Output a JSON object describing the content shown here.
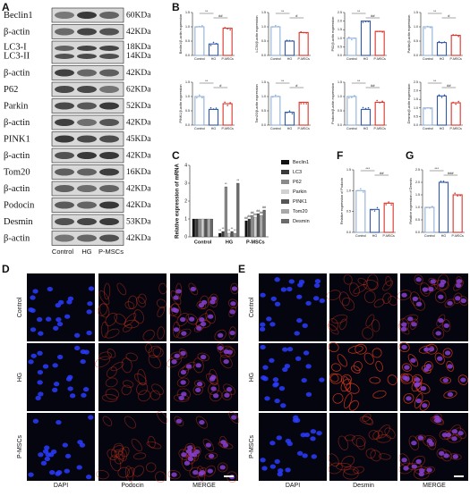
{
  "figure": {
    "panel_labels": [
      "A",
      "B",
      "C",
      "D",
      "E",
      "F",
      "G"
    ]
  },
  "blot": {
    "lanes": [
      "Control",
      "HG",
      "P-MSCs"
    ],
    "rows": [
      {
        "label": "Beclin1",
        "kda": "60KDa"
      },
      {
        "label": "β-actin",
        "kda": "42KDa"
      },
      {
        "label": [
          "LC3-I",
          "LC3-II"
        ],
        "kda": [
          "18KDa",
          "14KDa"
        ]
      },
      {
        "label": "β-actin",
        "kda": "42KDa"
      },
      {
        "label": "P62",
        "kda": "62KDa"
      },
      {
        "label": "Parkin",
        "kda": "52KDa"
      },
      {
        "label": "β-actin",
        "kda": "42KDa"
      },
      {
        "label": "PINK1",
        "kda": "45KDa"
      },
      {
        "label": "β-actin",
        "kda": "42KDa"
      },
      {
        "label": "Tom20",
        "kda": "16KDa"
      },
      {
        "label": "β-actin",
        "kda": "42KDa"
      },
      {
        "label": "Podocin",
        "kda": "42KDa"
      },
      {
        "label": "Desmin",
        "kda": "53KDa"
      },
      {
        "label": "β-actin",
        "kda": "42KDa"
      }
    ]
  },
  "chart_data": [
    {
      "type": "bar",
      "title": "Beclin1/β-actin expression",
      "categories": [
        "Control",
        "HG",
        "P-MSCs"
      ],
      "values": [
        1.0,
        0.4,
        0.95
      ],
      "colors": [
        "#8fb0d8",
        "#2f58a8",
        "#d9322b"
      ],
      "ylim": [
        0,
        1.5
      ],
      "yticks": [
        {
          "value": 0,
          "label": "0.0"
        },
        {
          "value": 0.5,
          "label": "0.5"
        },
        {
          "value": 1,
          "label": "1.0"
        },
        {
          "value": 1.5,
          "label": "1.5"
        }
      ],
      "annotations": [
        "**",
        "##"
      ]
    },
    {
      "type": "bar",
      "title": "LC3II/β-actin expression",
      "categories": [
        "Control",
        "HG",
        "P-MSCs"
      ],
      "values": [
        1.0,
        0.5,
        0.8
      ],
      "colors": [
        "#8fb0d8",
        "#2f58a8",
        "#d9322b"
      ],
      "ylim": [
        0,
        1.5
      ],
      "yticks": [
        {
          "value": 0,
          "label": "0.0"
        },
        {
          "value": 0.5,
          "label": "0.5"
        },
        {
          "value": 1,
          "label": "1.0"
        },
        {
          "value": 1.5,
          "label": "1.5"
        }
      ],
      "annotations": [
        "**",
        "#"
      ]
    },
    {
      "type": "bar",
      "title": "P62/β-actin expression",
      "categories": [
        "Control",
        "HG",
        "P-MSCs"
      ],
      "values": [
        1.0,
        2.0,
        1.4
      ],
      "colors": [
        "#8fb0d8",
        "#2f58a8",
        "#d9322b"
      ],
      "ylim": [
        0,
        2.5
      ],
      "yticks": [
        {
          "value": 0,
          "label": "0.0"
        },
        {
          "value": 0.5,
          "label": "0.5"
        },
        {
          "value": 1,
          "label": "1.0"
        },
        {
          "value": 1.5,
          "label": "1.5"
        },
        {
          "value": 2,
          "label": "2.0"
        },
        {
          "value": 2.5,
          "label": "2.5"
        }
      ],
      "annotations": [
        "**",
        "##"
      ]
    },
    {
      "type": "bar",
      "title": "Parkin/β-actin expression",
      "categories": [
        "Control",
        "HG",
        "P-MSCs"
      ],
      "values": [
        1.0,
        0.45,
        0.7
      ],
      "colors": [
        "#8fb0d8",
        "#2f58a8",
        "#d9322b"
      ],
      "ylim": [
        0,
        1.5
      ],
      "yticks": [
        {
          "value": 0,
          "label": "0.0"
        },
        {
          "value": 0.5,
          "label": "0.5"
        },
        {
          "value": 1,
          "label": "1.0"
        },
        {
          "value": 1.5,
          "label": "1.5"
        }
      ],
      "annotations": [
        "**",
        "#"
      ]
    },
    {
      "type": "bar",
      "title": "PINK1/β-actin expression",
      "categories": [
        "Control",
        "HG",
        "P-MSCs"
      ],
      "values": [
        1.0,
        0.55,
        0.75
      ],
      "colors": [
        "#8fb0d8",
        "#2f58a8",
        "#d9322b"
      ],
      "ylim": [
        0,
        1.5
      ],
      "yticks": [
        {
          "value": 0,
          "label": "0.0"
        },
        {
          "value": 0.5,
          "label": "0.5"
        },
        {
          "value": 1,
          "label": "1.0"
        },
        {
          "value": 1.5,
          "label": "1.5"
        }
      ],
      "annotations": [
        "**",
        "#"
      ]
    },
    {
      "type": "bar",
      "title": "Tom20/β-actin expression",
      "categories": [
        "Control",
        "HG",
        "P-MSCs"
      ],
      "values": [
        1.0,
        0.45,
        0.8
      ],
      "colors": [
        "#8fb0d8",
        "#2f58a8",
        "#d9322b"
      ],
      "ylim": [
        0,
        1.5
      ],
      "yticks": [
        {
          "value": 0,
          "label": "0.0"
        },
        {
          "value": 0.5,
          "label": "0.5"
        },
        {
          "value": 1,
          "label": "1.0"
        },
        {
          "value": 1.5,
          "label": "1.5"
        }
      ],
      "annotations": [
        "**",
        "#"
      ]
    },
    {
      "type": "bar",
      "title": "Podocin/β-actin expression",
      "categories": [
        "Control",
        "HG",
        "P-MSCs"
      ],
      "values": [
        1.0,
        0.55,
        0.8
      ],
      "colors": [
        "#8fb0d8",
        "#2f58a8",
        "#d9322b"
      ],
      "ylim": [
        0,
        1.5
      ],
      "yticks": [
        {
          "value": 0,
          "label": "0.0"
        },
        {
          "value": 0.5,
          "label": "0.5"
        },
        {
          "value": 1,
          "label": "1.0"
        },
        {
          "value": 1.5,
          "label": "1.5"
        }
      ],
      "annotations": [
        "**",
        "##"
      ]
    },
    {
      "type": "bar",
      "title": "Desmin/β-actin expression",
      "categories": [
        "Control",
        "HG",
        "P-MSCs"
      ],
      "values": [
        1.0,
        1.7,
        1.3
      ],
      "colors": [
        "#8fb0d8",
        "#2f58a8",
        "#d9322b"
      ],
      "ylim": [
        0,
        2.5
      ],
      "yticks": [
        {
          "value": 0,
          "label": "0.0"
        },
        {
          "value": 0.5,
          "label": "0.5"
        },
        {
          "value": 1,
          "label": "1.0"
        },
        {
          "value": 1.5,
          "label": "1.5"
        },
        {
          "value": 2,
          "label": "2.0"
        },
        {
          "value": 2.5,
          "label": "2.5"
        }
      ],
      "annotations": [
        "**",
        "##"
      ]
    },
    {
      "type": "grouped-bar",
      "y_label": "Relative expression of mRNA",
      "categories": [
        "Control",
        "HG",
        "P-MSCs"
      ],
      "ylim": [
        0,
        4
      ],
      "yticks": [
        0,
        1,
        2,
        3,
        4
      ],
      "annotations": [
        "**",
        "##"
      ],
      "series": [
        {
          "name": "Beclin1",
          "color": "#111111",
          "values": [
            1.0,
            0.2,
            0.9
          ]
        },
        {
          "name": "LC3",
          "color": "#3a3a3a",
          "values": [
            1.0,
            0.3,
            1.0
          ]
        },
        {
          "name": "P62",
          "color": "#8a8a8a",
          "values": [
            1.0,
            2.8,
            1.2
          ]
        },
        {
          "name": "Parkin",
          "color": "#d0d0d0",
          "values": [
            1.0,
            0.2,
            1.1
          ]
        },
        {
          "name": "PINK1",
          "color": "#555555",
          "values": [
            1.0,
            0.3,
            1.3
          ]
        },
        {
          "name": "Tom20",
          "color": "#a8a8a8",
          "values": [
            1.0,
            0.2,
            1.2
          ]
        },
        {
          "name": "Desmin",
          "color": "#6a6a6a",
          "values": [
            1.0,
            3.0,
            1.5
          ]
        }
      ]
    },
    {
      "type": "bar",
      "title": "Relative expression of Podocin",
      "categories": [
        "Control",
        "HG",
        "P-MSCs"
      ],
      "values": [
        1.0,
        0.55,
        0.7
      ],
      "colors": [
        "#8fb0d8",
        "#2f58a8",
        "#d9322b"
      ],
      "ylim": [
        0,
        1.5
      ],
      "yticks": [
        {
          "value": 0,
          "label": "0.0"
        },
        {
          "value": 0.5,
          "label": "0.5"
        },
        {
          "value": 1,
          "label": "1.0"
        },
        {
          "value": 1.5,
          "label": "1.5"
        }
      ],
      "annotations": [
        "***",
        "##"
      ]
    },
    {
      "type": "bar",
      "title": "Relative expression of Desmin",
      "categories": [
        "Control",
        "HG",
        "P-MSCs"
      ],
      "values": [
        1.0,
        2.0,
        1.5
      ],
      "colors": [
        "#8fb0d8",
        "#2f58a8",
        "#d9322b"
      ],
      "ylim": [
        0,
        2.5
      ],
      "yticks": [
        {
          "value": 0,
          "label": "0.0"
        },
        {
          "value": 0.5,
          "label": "0.5"
        },
        {
          "value": 1,
          "label": "1.0"
        },
        {
          "value": 1.5,
          "label": "1.5"
        },
        {
          "value": 2,
          "label": "2.0"
        },
        {
          "value": 2.5,
          "label": "2.5"
        }
      ],
      "annotations": [
        "***",
        "###"
      ]
    }
  ],
  "microscopy": [
    {
      "rows": [
        "Control",
        "HG",
        "P-MSCs"
      ],
      "columns": [
        "DAPI",
        "Podocin",
        "MERGE"
      ]
    },
    {
      "rows": [
        "Control",
        "HG",
        "P-MSCs"
      ],
      "columns": [
        "DAPI",
        "Desmin",
        "MERGE"
      ]
    }
  ]
}
